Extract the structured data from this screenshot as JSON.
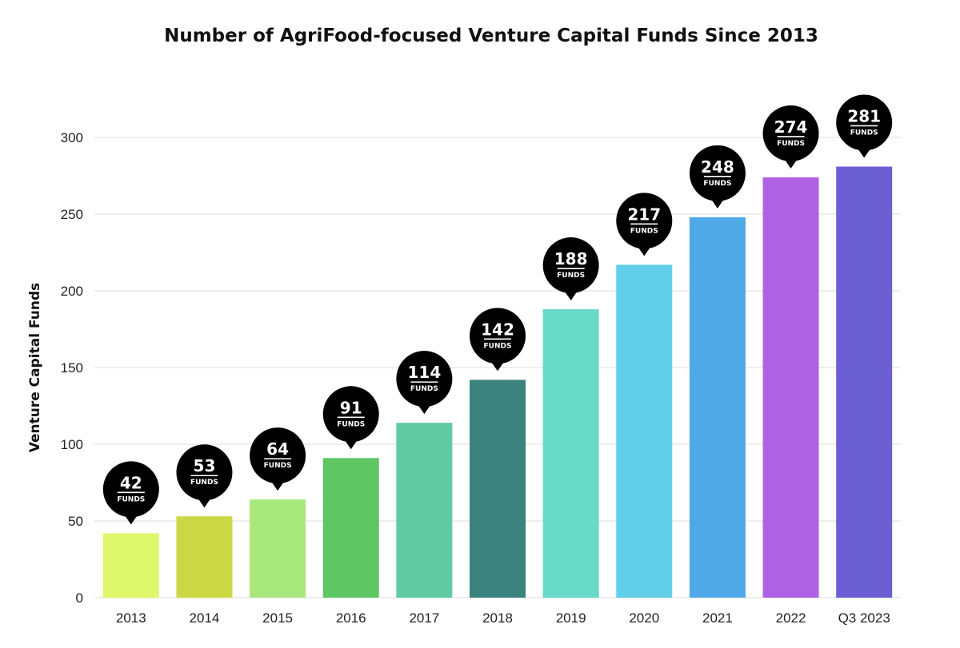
{
  "chart_data": {
    "type": "bar",
    "title": "Number of AgriFood-focused Venture Capital Funds Since 2013",
    "xlabel": "",
    "ylabel": "Venture Capital Funds",
    "ylim": [
      0,
      300
    ],
    "yticks": [
      "0",
      "50",
      "100",
      "150",
      "200",
      "250",
      "300"
    ],
    "grid": true,
    "categories": [
      "2013",
      "2014",
      "2015",
      "2016",
      "2017",
      "2018",
      "2019",
      "2020",
      "2021",
      "2022",
      "Q3 2023"
    ],
    "values": [
      42,
      53,
      64,
      91,
      114,
      142,
      188,
      217,
      248,
      274,
      281
    ],
    "data_labels": [
      "42",
      "53",
      "64",
      "91",
      "114",
      "142",
      "188",
      "217",
      "248",
      "274",
      "281"
    ],
    "data_label_unit": "FUNDS",
    "colors": [
      "#dff76b",
      "#cad846",
      "#a9e87c",
      "#5ec663",
      "#5fcaa4",
      "#3b837c",
      "#69d9c8",
      "#62cfea",
      "#4fa9e6",
      "#ae62e3",
      "#6b5fd3"
    ],
    "badge_color": "#000000"
  }
}
